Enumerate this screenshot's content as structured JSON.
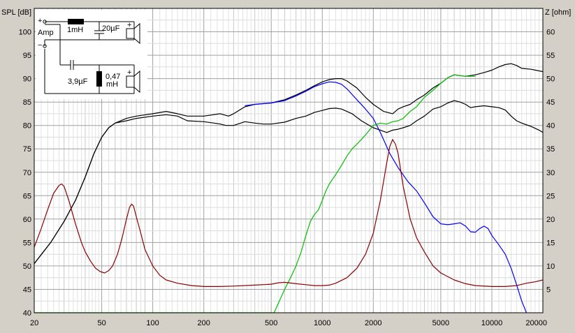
{
  "chart_data": {
    "type": "line",
    "xscale": "log",
    "xlim": [
      20,
      20000
    ],
    "ylim_left": [
      40,
      105
    ],
    "ylim_right": [
      0,
      65
    ],
    "ylabel_left": "SPL [dB]",
    "ylabel_right": "Z [ohm]",
    "grid": true,
    "x_ticks": [
      20,
      50,
      100,
      200,
      500,
      1000,
      2000,
      5000,
      10000,
      20000
    ],
    "x_tick_labels": [
      "20",
      "50",
      "100",
      "200",
      "500",
      "1000",
      "2000",
      "5000",
      "10000",
      "20000"
    ],
    "y_left_ticks": [
      40,
      45,
      50,
      55,
      60,
      65,
      70,
      75,
      80,
      85,
      90,
      95,
      100
    ],
    "y_left_tick_labels": [
      "40",
      "45",
      "50",
      "55",
      "60",
      "65",
      "70",
      "75",
      "80",
      "85",
      "90",
      "95",
      "100"
    ],
    "y_right_ticks": [
      5,
      10,
      15,
      20,
      25,
      30,
      35,
      40,
      45,
      50,
      55,
      60
    ],
    "y_right_tick_labels": [
      "5",
      "10",
      "15",
      "20",
      "25",
      "30",
      "35",
      "40",
      "45",
      "50",
      "55",
      "60"
    ],
    "series": [
      {
        "color": "#000000",
        "axis": "left",
        "points": [
          [
            20,
            50.5
          ],
          [
            25,
            55
          ],
          [
            30,
            59.5
          ],
          [
            35,
            64
          ],
          [
            40,
            69
          ],
          [
            45,
            74
          ],
          [
            50,
            77.5
          ],
          [
            55,
            79.5
          ],
          [
            60,
            80.5
          ],
          [
            70,
            81.5
          ],
          [
            80,
            82
          ],
          [
            100,
            82.5
          ],
          [
            120,
            83
          ],
          [
            140,
            82.5
          ],
          [
            160,
            82
          ],
          [
            200,
            82
          ],
          [
            250,
            82.5
          ],
          [
            280,
            82
          ],
          [
            300,
            82.5
          ],
          [
            350,
            84
          ],
          [
            400,
            84.5
          ],
          [
            500,
            84.8
          ],
          [
            600,
            85.5
          ],
          [
            700,
            86.5
          ],
          [
            800,
            87.5
          ],
          [
            900,
            88.5
          ],
          [
            1000,
            89.3
          ],
          [
            1100,
            89.8
          ],
          [
            1200,
            90
          ],
          [
            1300,
            90
          ],
          [
            1400,
            89.5
          ],
          [
            1600,
            88
          ],
          [
            1800,
            86
          ],
          [
            2000,
            84.5
          ],
          [
            2300,
            83
          ],
          [
            2600,
            82.5
          ],
          [
            2800,
            83.5
          ],
          [
            3000,
            84
          ],
          [
            3300,
            84.5
          ],
          [
            3600,
            85.5
          ],
          [
            4000,
            86.5
          ],
          [
            4500,
            88
          ],
          [
            5000,
            89
          ],
          [
            5500,
            90.2
          ],
          [
            6000,
            90.8
          ],
          [
            7000,
            90.5
          ],
          [
            8000,
            90.8
          ],
          [
            9000,
            91.3
          ],
          [
            10000,
            91.8
          ],
          [
            11000,
            92.5
          ],
          [
            12000,
            93
          ],
          [
            13000,
            93.2
          ],
          [
            14000,
            92.8
          ],
          [
            15000,
            92.2
          ],
          [
            17000,
            92
          ],
          [
            20000,
            91.5
          ]
        ]
      },
      {
        "color": "#000000",
        "axis": "left",
        "points": [
          [
            20,
            50.5
          ],
          [
            25,
            55
          ],
          [
            30,
            59.5
          ],
          [
            35,
            64
          ],
          [
            40,
            69
          ],
          [
            45,
            74
          ],
          [
            50,
            77.5
          ],
          [
            55,
            79.5
          ],
          [
            60,
            80.5
          ],
          [
            70,
            81
          ],
          [
            80,
            81.5
          ],
          [
            100,
            82
          ],
          [
            120,
            82.3
          ],
          [
            140,
            82
          ],
          [
            160,
            81
          ],
          [
            200,
            80.8
          ],
          [
            230,
            80.5
          ],
          [
            250,
            80.3
          ],
          [
            270,
            80
          ],
          [
            300,
            80
          ],
          [
            350,
            80.8
          ],
          [
            400,
            80.5
          ],
          [
            450,
            80.3
          ],
          [
            500,
            80.3
          ],
          [
            600,
            80.7
          ],
          [
            700,
            81.5
          ],
          [
            800,
            82
          ],
          [
            900,
            82.8
          ],
          [
            1000,
            83.2
          ],
          [
            1100,
            83.6
          ],
          [
            1200,
            83.7
          ],
          [
            1300,
            83.5
          ],
          [
            1500,
            82.5
          ],
          [
            1700,
            81
          ],
          [
            2000,
            79.5
          ],
          [
            2200,
            79
          ],
          [
            2400,
            78.5
          ],
          [
            2600,
            79
          ],
          [
            2800,
            79.2
          ],
          [
            3000,
            79.5
          ],
          [
            3300,
            80
          ],
          [
            3600,
            81
          ],
          [
            4000,
            82
          ],
          [
            4500,
            83.5
          ],
          [
            5000,
            84
          ],
          [
            5500,
            84.8
          ],
          [
            6000,
            85.3
          ],
          [
            6500,
            85
          ],
          [
            7000,
            84.5
          ],
          [
            7500,
            83.8
          ],
          [
            8000,
            84
          ],
          [
            9000,
            84.2
          ],
          [
            10000,
            84
          ],
          [
            11000,
            83.8
          ],
          [
            12000,
            83.3
          ],
          [
            13000,
            82
          ],
          [
            14000,
            81
          ],
          [
            15000,
            80.5
          ],
          [
            17000,
            79.8
          ],
          [
            19000,
            79
          ],
          [
            20000,
            78.5
          ]
        ]
      },
      {
        "color": "#0000ff",
        "axis": "left",
        "points": [
          [
            350,
            84.2
          ],
          [
            400,
            84.5
          ],
          [
            500,
            84.8
          ],
          [
            600,
            85.3
          ],
          [
            700,
            86.3
          ],
          [
            800,
            87.3
          ],
          [
            900,
            88.3
          ],
          [
            1000,
            88.9
          ],
          [
            1100,
            89.3
          ],
          [
            1200,
            89.2
          ],
          [
            1300,
            88.8
          ],
          [
            1400,
            87.8
          ],
          [
            1600,
            85.5
          ],
          [
            1800,
            83.5
          ],
          [
            2000,
            81.5
          ],
          [
            2200,
            78.5
          ],
          [
            2500,
            74
          ],
          [
            2800,
            71
          ],
          [
            3200,
            68
          ],
          [
            3600,
            66
          ],
          [
            4000,
            63.5
          ],
          [
            4500,
            60.5
          ],
          [
            5000,
            59
          ],
          [
            5500,
            58.8
          ],
          [
            6000,
            59
          ],
          [
            6500,
            59.2
          ],
          [
            7000,
            58.5
          ],
          [
            7500,
            57.3
          ],
          [
            8000,
            57.2
          ],
          [
            8500,
            58
          ],
          [
            9000,
            58.5
          ],
          [
            9500,
            58
          ],
          [
            10000,
            56.5
          ],
          [
            11000,
            54.5
          ],
          [
            12000,
            52.5
          ],
          [
            13000,
            49.5
          ],
          [
            14000,
            46
          ],
          [
            15000,
            42.5
          ],
          [
            16000,
            40
          ]
        ]
      },
      {
        "color": "#00c000",
        "axis": "left",
        "points": [
          [
            20,
            40
          ],
          [
            520,
            40
          ],
          [
            550,
            42
          ],
          [
            600,
            45
          ],
          [
            650,
            47.5
          ],
          [
            700,
            50
          ],
          [
            750,
            53
          ],
          [
            800,
            56.5
          ],
          [
            850,
            59.5
          ],
          [
            900,
            61
          ],
          [
            950,
            62
          ],
          [
            1000,
            64
          ],
          [
            1050,
            66
          ],
          [
            1100,
            67.5
          ],
          [
            1200,
            69.5
          ],
          [
            1300,
            71.5
          ],
          [
            1400,
            73.5
          ],
          [
            1500,
            75
          ],
          [
            1600,
            76
          ],
          [
            1700,
            77
          ],
          [
            1800,
            78
          ],
          [
            1900,
            79
          ],
          [
            2000,
            80
          ],
          [
            2200,
            80.5
          ],
          [
            2400,
            80.3
          ],
          [
            2600,
            80.8
          ],
          [
            2800,
            81
          ],
          [
            3000,
            81.5
          ],
          [
            3300,
            83
          ],
          [
            3600,
            84
          ],
          [
            4000,
            86
          ],
          [
            4500,
            87.5
          ],
          [
            5000,
            89
          ],
          [
            5500,
            90.2
          ],
          [
            6000,
            90.8
          ],
          [
            7000,
            90.5
          ],
          [
            8000,
            90.5
          ]
        ]
      },
      {
        "color": "#8b0000",
        "axis": "right",
        "points": [
          [
            20,
            14
          ],
          [
            22,
            18
          ],
          [
            24,
            22
          ],
          [
            26,
            25.5
          ],
          [
            28,
            27.2
          ],
          [
            29,
            27.5
          ],
          [
            30,
            27
          ],
          [
            32,
            24
          ],
          [
            35,
            19
          ],
          [
            38,
            15
          ],
          [
            40,
            13
          ],
          [
            43,
            11
          ],
          [
            46,
            9.5
          ],
          [
            49,
            8.8
          ],
          [
            52,
            8.5
          ],
          [
            55,
            9
          ],
          [
            58,
            10
          ],
          [
            62,
            12.5
          ],
          [
            66,
            16
          ],
          [
            70,
            20
          ],
          [
            73,
            22.5
          ],
          [
            75,
            23.2
          ],
          [
            77,
            22.8
          ],
          [
            80,
            20.5
          ],
          [
            85,
            17
          ],
          [
            90,
            13.5
          ],
          [
            100,
            10
          ],
          [
            110,
            8
          ],
          [
            120,
            7
          ],
          [
            140,
            6.3
          ],
          [
            170,
            5.8
          ],
          [
            200,
            5.6
          ],
          [
            250,
            5.6
          ],
          [
            300,
            5.7
          ],
          [
            400,
            5.9
          ],
          [
            500,
            6.1
          ],
          [
            550,
            6.4
          ],
          [
            600,
            6.5
          ],
          [
            700,
            6.2
          ],
          [
            800,
            6
          ],
          [
            900,
            5.8
          ],
          [
            1000,
            5.8
          ],
          [
            1100,
            5.9
          ],
          [
            1200,
            6.3
          ],
          [
            1400,
            7.5
          ],
          [
            1600,
            9.5
          ],
          [
            1800,
            12.5
          ],
          [
            2000,
            17
          ],
          [
            2200,
            24
          ],
          [
            2400,
            32
          ],
          [
            2500,
            35.5
          ],
          [
            2600,
            37
          ],
          [
            2700,
            36
          ],
          [
            2800,
            34
          ],
          [
            3000,
            27
          ],
          [
            3300,
            20
          ],
          [
            3600,
            16
          ],
          [
            4000,
            13
          ],
          [
            4500,
            10
          ],
          [
            5000,
            8.5
          ],
          [
            6000,
            7
          ],
          [
            7000,
            6.2
          ],
          [
            8000,
            5.8
          ],
          [
            10000,
            5.6
          ],
          [
            12000,
            5.6
          ],
          [
            14000,
            5.8
          ],
          [
            16000,
            6.3
          ],
          [
            18000,
            6.6
          ],
          [
            20000,
            7
          ]
        ]
      }
    ],
    "schematic": {
      "labels": {
        "amp": "Amp",
        "plus": "+",
        "minus": "−",
        "l1": "1mH",
        "c1": "20µF",
        "c2": "3,9µF",
        "l2a": "0,47",
        "l2b": "mH",
        "sp_plus_1": "+",
        "sp_plus_2": "+"
      }
    }
  }
}
